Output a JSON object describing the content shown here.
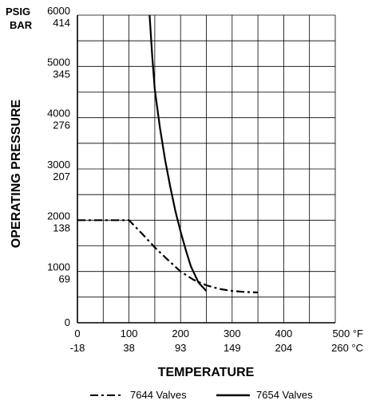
{
  "chart_data": {
    "type": "line",
    "ylabel": "OPERATING PRESSURE",
    "xlabel": "TEMPERATURE",
    "y_unit_primary": "PSIG",
    "y_unit_secondary": "BAR",
    "x_unit_primary": "°F",
    "x_unit_secondary": "°C",
    "xlim": [
      0,
      500
    ],
    "ylim": [
      0,
      6000
    ],
    "x_ticks": [
      {
        "value": 0,
        "f": "0",
        "c": "-18"
      },
      {
        "value": 100,
        "f": "100",
        "c": "38"
      },
      {
        "value": 200,
        "f": "200",
        "c": "93"
      },
      {
        "value": 300,
        "f": "300",
        "c": "149"
      },
      {
        "value": 400,
        "f": "400",
        "c": "204"
      },
      {
        "value": 500,
        "f": "500 °F",
        "c": "260 °C"
      }
    ],
    "y_ticks": [
      {
        "value": 0,
        "psig": "0",
        "bar": ""
      },
      {
        "value": 1000,
        "psig": "1000",
        "bar": "69"
      },
      {
        "value": 2000,
        "psig": "2000",
        "bar": "138"
      },
      {
        "value": 3000,
        "psig": "3000",
        "bar": "207"
      },
      {
        "value": 4000,
        "psig": "4000",
        "bar": "276"
      },
      {
        "value": 5000,
        "psig": "5000",
        "bar": "345"
      },
      {
        "value": 6000,
        "psig": "6000",
        "bar": "414"
      }
    ],
    "grid": true,
    "legend_position": "bottom",
    "series": [
      {
        "name": "7644 Valves",
        "style": "dash-dot",
        "x": [
          0,
          100,
          125,
          150,
          175,
          200,
          225,
          250,
          275,
          300,
          325,
          350
        ],
        "y": [
          2000,
          2000,
          1740,
          1470,
          1230,
          1000,
          840,
          730,
          660,
          620,
          600,
          590
        ]
      },
      {
        "name": "7654 Valves",
        "style": "solid",
        "x": [
          140,
          145,
          150,
          160,
          170,
          180,
          190,
          200,
          210,
          220,
          235,
          250
        ],
        "y": [
          6000,
          5200,
          4550,
          3800,
          3180,
          2650,
          2180,
          1780,
          1420,
          1100,
          780,
          620
        ]
      }
    ]
  }
}
